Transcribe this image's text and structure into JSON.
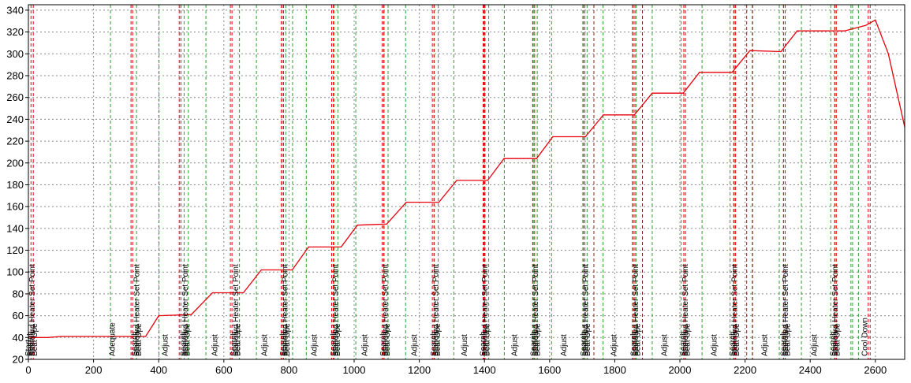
{
  "chart_data": {
    "type": "line",
    "title": "",
    "xlabel": "",
    "ylabel": "",
    "xlim": [
      0,
      2690
    ],
    "ylim": [
      20,
      345
    ],
    "grid": true,
    "x_ticks": [
      0,
      200,
      400,
      600,
      800,
      1000,
      1200,
      1400,
      1600,
      1800,
      2000,
      2200,
      2400,
      2600
    ],
    "y_ticks": [
      20,
      40,
      60,
      80,
      100,
      120,
      140,
      160,
      180,
      200,
      220,
      240,
      260,
      280,
      300,
      320,
      340
    ],
    "series": [
      {
        "color": "#e8000b",
        "points": [
          [
            0,
            41
          ],
          [
            10,
            40
          ],
          [
            60,
            40
          ],
          [
            100,
            41
          ],
          [
            250,
            41
          ],
          [
            300,
            41
          ],
          [
            360,
            41
          ],
          [
            400,
            60
          ],
          [
            500,
            61
          ],
          [
            565,
            81
          ],
          [
            660,
            81
          ],
          [
            715,
            102
          ],
          [
            810,
            102
          ],
          [
            860,
            123
          ],
          [
            960,
            123
          ],
          [
            1010,
            143
          ],
          [
            1100,
            144
          ],
          [
            1160,
            164
          ],
          [
            1260,
            164
          ],
          [
            1315,
            184
          ],
          [
            1410,
            184
          ],
          [
            1460,
            204
          ],
          [
            1560,
            204
          ],
          [
            1610,
            224
          ],
          [
            1710,
            224
          ],
          [
            1765,
            244
          ],
          [
            1860,
            244
          ],
          [
            1915,
            264
          ],
          [
            2010,
            264
          ],
          [
            2060,
            283
          ],
          [
            2160,
            283
          ],
          [
            2215,
            303
          ],
          [
            2310,
            302
          ],
          [
            2360,
            321
          ],
          [
            2440,
            321
          ],
          [
            2505,
            321
          ],
          [
            2570,
            326
          ],
          [
            2600,
            331
          ],
          [
            2640,
            300
          ],
          [
            2690,
            233
          ]
        ]
      }
    ],
    "event_markers": {
      "green_lines": [
        252,
        332,
        401,
        478,
        491,
        545,
        648,
        700,
        790,
        811,
        853,
        939,
        950,
        1005,
        1092,
        1104,
        1158,
        1246,
        1258,
        1306,
        1402,
        1413,
        1461,
        1550,
        1562,
        1606,
        1702,
        1715,
        1764,
        1854,
        1866,
        1915,
        2004,
        2017,
        2068,
        2154,
        2167,
        2222,
        2305,
        2318,
        2373,
        2463,
        2476,
        2525,
        2530,
        2548
      ],
      "red_lines": [
        8,
        15,
        315,
        320,
        463,
        468,
        620,
        625,
        776,
        782,
        931,
        936,
        1086,
        1091,
        1240,
        1245,
        1396,
        1401,
        1548,
        1554,
        1703,
        1708,
        1857,
        1862,
        2012,
        2017,
        2165,
        2171,
        2318,
        2323,
        2475,
        2480,
        2578,
        2584
      ],
      "dark_lines": [
        783,
        1398,
        1736,
        1885,
        2205,
        2223
      ]
    },
    "annotations": [
      {
        "x": -2,
        "text": "Start"
      },
      {
        "x": 4,
        "text": "Search"
      },
      {
        "x": 10,
        "text": "Standard Heater Set Point"
      },
      {
        "x": 17,
        "text": "Beat Upe"
      },
      {
        "x": 255,
        "text": "Adequate"
      },
      {
        "x": 325,
        "text": "Search"
      },
      {
        "x": 331,
        "text": "Standard Heater Set Point"
      },
      {
        "x": 337,
        "text": "Beat Upe"
      },
      {
        "x": 418,
        "text": "Adjust"
      },
      {
        "x": 474,
        "text": "Search"
      },
      {
        "x": 480,
        "text": "Standard Heater Set Point"
      },
      {
        "x": 486,
        "text": "Beat Upe"
      },
      {
        "x": 570,
        "text": "Adjust"
      },
      {
        "x": 628,
        "text": "Search"
      },
      {
        "x": 634,
        "text": "Standard Heater Set Point"
      },
      {
        "x": 640,
        "text": "Beat Upe"
      },
      {
        "x": 723,
        "text": "Adjust"
      },
      {
        "x": 780,
        "text": "Search"
      },
      {
        "x": 786,
        "text": "Standard Heater Set Point"
      },
      {
        "x": 792,
        "text": "Beat Upe"
      },
      {
        "x": 875,
        "text": "Adjust"
      },
      {
        "x": 935,
        "text": "Search"
      },
      {
        "x": 941,
        "text": "Standard Heater Set Point"
      },
      {
        "x": 947,
        "text": "Beat Upe"
      },
      {
        "x": 1030,
        "text": "Adjust"
      },
      {
        "x": 1087,
        "text": "Search"
      },
      {
        "x": 1093,
        "text": "Standard Heater Set Point"
      },
      {
        "x": 1099,
        "text": "Beat Upe"
      },
      {
        "x": 1183,
        "text": "Adjust"
      },
      {
        "x": 1242,
        "text": "Search"
      },
      {
        "x": 1248,
        "text": "Standard Heater Set Point"
      },
      {
        "x": 1254,
        "text": "Beat Upe"
      },
      {
        "x": 1336,
        "text": "Adjust"
      },
      {
        "x": 1394,
        "text": "Search"
      },
      {
        "x": 1400,
        "text": "Standard Heater Set Point"
      },
      {
        "x": 1406,
        "text": "Beat Upe"
      },
      {
        "x": 1490,
        "text": "Adjust"
      },
      {
        "x": 1548,
        "text": "Search"
      },
      {
        "x": 1554,
        "text": "Standard Heater Set Point"
      },
      {
        "x": 1560,
        "text": "Beat Upe"
      },
      {
        "x": 1642,
        "text": "Adjust"
      },
      {
        "x": 1702,
        "text": "Search"
      },
      {
        "x": 1708,
        "text": "Standard Heater Set Point"
      },
      {
        "x": 1714,
        "text": "Beat Upe"
      },
      {
        "x": 1795,
        "text": "Adjust"
      },
      {
        "x": 1856,
        "text": "Search"
      },
      {
        "x": 1862,
        "text": "Standard Heater Set Point"
      },
      {
        "x": 1868,
        "text": "Beat Upe"
      },
      {
        "x": 1950,
        "text": "Adjust"
      },
      {
        "x": 2008,
        "text": "Search"
      },
      {
        "x": 2014,
        "text": "Standard Heater Set Point"
      },
      {
        "x": 2020,
        "text": "Beat Upe"
      },
      {
        "x": 2103,
        "text": "Adjust"
      },
      {
        "x": 2160,
        "text": "Search"
      },
      {
        "x": 2166,
        "text": "Standard Heater Set Point"
      },
      {
        "x": 2172,
        "text": "Beat Upe"
      },
      {
        "x": 2258,
        "text": "Adjust"
      },
      {
        "x": 2316,
        "text": "Search"
      },
      {
        "x": 2322,
        "text": "Standard Heater Set Point"
      },
      {
        "x": 2328,
        "text": "Beat Upe"
      },
      {
        "x": 2410,
        "text": "Adjust"
      },
      {
        "x": 2468,
        "text": "Search"
      },
      {
        "x": 2474,
        "text": "Standard Heater Set Point"
      },
      {
        "x": 2480,
        "text": "Beat Upe"
      },
      {
        "x": 2565,
        "text": "Cool Down"
      }
    ]
  }
}
